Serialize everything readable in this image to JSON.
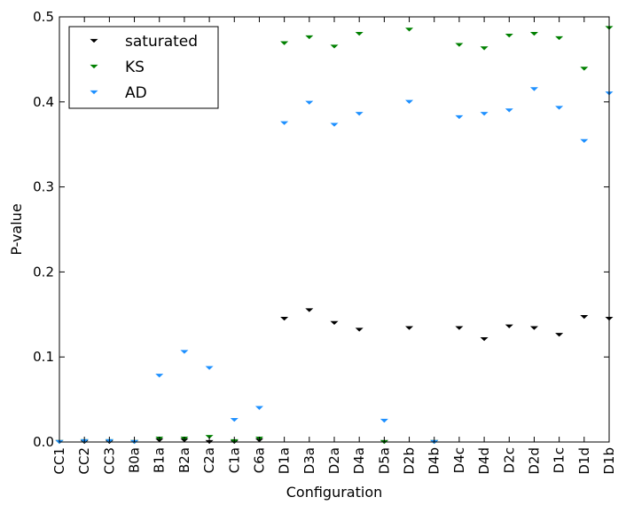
{
  "chart_data": {
    "type": "scatter",
    "title": "",
    "xlabel": "Configuration",
    "ylabel": "P-value",
    "ylim": [
      0,
      0.5
    ],
    "yticks": [
      "0.0",
      "0.1",
      "0.2",
      "0.3",
      "0.4",
      "0.5"
    ],
    "grid": false,
    "legend_placement": "top-left",
    "marker": "triangle-down",
    "categories": [
      "CC1",
      "CC2",
      "CC3",
      "B0a",
      "B1a",
      "B2a",
      "C2a",
      "C1a",
      "C6a",
      "D1a",
      "D3a",
      "D2a",
      "D4a",
      "D5a",
      "D2b",
      "D4b",
      "D4c",
      "D4d",
      "D2c",
      "D2d",
      "D1c",
      "D1d",
      "D1b"
    ],
    "series": [
      {
        "name": "saturated",
        "color": "#000000",
        "values": [
          0.0,
          0.0,
          0.0,
          0.0,
          0.002,
          0.002,
          0.0,
          0.0,
          0.002,
          0.145,
          0.155,
          0.14,
          0.132,
          0.0,
          0.134,
          0.0,
          0.134,
          0.121,
          0.136,
          0.134,
          0.126,
          0.147,
          0.145
        ]
      },
      {
        "name": "KS",
        "color": "#008000",
        "values": [
          0.0,
          0.001,
          0.001,
          0.0,
          0.004,
          0.004,
          0.006,
          0.001,
          0.004,
          0.469,
          0.476,
          0.465,
          0.48,
          0.0,
          0.485,
          0.0,
          0.467,
          0.463,
          0.478,
          0.48,
          0.475,
          0.439,
          0.487
        ]
      },
      {
        "name": "AD",
        "color": "#1e90ff",
        "values": [
          0.0,
          0.001,
          0.001,
          0.0,
          0.078,
          0.106,
          0.087,
          0.026,
          0.04,
          0.375,
          0.399,
          0.373,
          0.386,
          0.025,
          0.4,
          0.0,
          0.382,
          0.386,
          0.39,
          0.415,
          0.393,
          0.354,
          0.41
        ]
      }
    ]
  }
}
